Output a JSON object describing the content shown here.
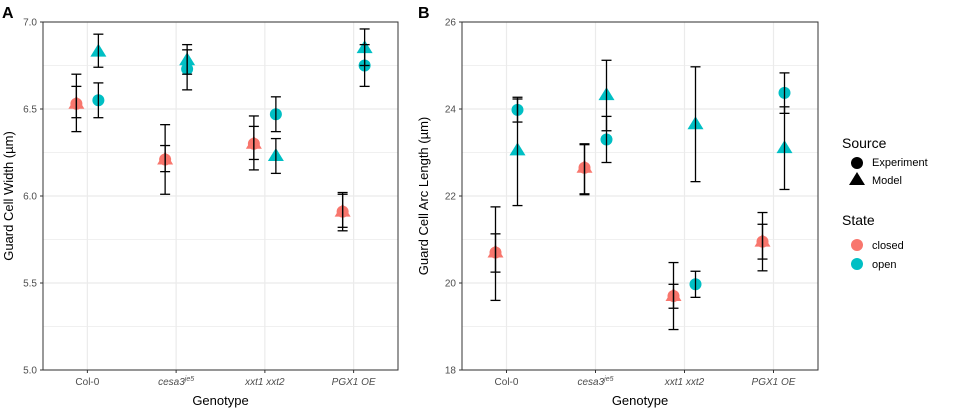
{
  "legend": {
    "source_title": "Source",
    "source_items": [
      {
        "label": "Experiment",
        "shape": "circle"
      },
      {
        "label": "Model",
        "shape": "triangle"
      }
    ],
    "state_title": "State",
    "state_items": [
      {
        "label": "closed",
        "color": "#F8766D"
      },
      {
        "label": "open",
        "color": "#00BFC4"
      }
    ]
  },
  "colors": {
    "closed": "#F8766D",
    "open": "#00BFC4",
    "grid": "#EBEBEB",
    "border": "#333333",
    "errorbar": "#000000"
  },
  "chart_data": [
    {
      "panel_label": "A",
      "type": "scatter",
      "title": "",
      "xlabel": "Genotype",
      "ylabel": "Guard Cell Width (µm)",
      "categories": [
        {
          "base": "Col-0",
          "sup": ""
        },
        {
          "base": "cesa3",
          "sup": "je5"
        },
        {
          "base": "xxt1 xxt2",
          "sup": ""
        },
        {
          "base": "PGX1 OE",
          "sup": ""
        }
      ],
      "ylim": [
        5.0,
        7.0
      ],
      "yticks": [
        5.0,
        5.5,
        6.0,
        6.5,
        7.0
      ],
      "ytick_labels": [
        "5.0",
        "5.5",
        "6.0",
        "6.5",
        "7.0"
      ],
      "series": [
        {
          "name": "closed – Experiment",
          "state": "closed",
          "source": "Experiment",
          "shape": "circle",
          "points": [
            {
              "cat": 0,
              "y": 6.53,
              "lo": 6.45,
              "hi": 6.63
            },
            {
              "cat": 1,
              "y": 6.21,
              "lo": 6.14,
              "hi": 6.29
            },
            {
              "cat": 2,
              "y": 6.3,
              "lo": 6.21,
              "hi": 6.4
            },
            {
              "cat": 3,
              "y": 5.91,
              "lo": 5.82,
              "hi": 6.01
            }
          ]
        },
        {
          "name": "closed – Model",
          "state": "closed",
          "source": "Model",
          "shape": "triangle",
          "points": [
            {
              "cat": 0,
              "y": 6.53,
              "lo": 6.37,
              "hi": 6.7
            },
            {
              "cat": 1,
              "y": 6.21,
              "lo": 6.01,
              "hi": 6.41
            },
            {
              "cat": 2,
              "y": 6.3,
              "lo": 6.15,
              "hi": 6.46
            },
            {
              "cat": 3,
              "y": 5.91,
              "lo": 5.8,
              "hi": 6.02
            }
          ]
        },
        {
          "name": "open – Experiment",
          "state": "open",
          "source": "Experiment",
          "shape": "circle",
          "points": [
            {
              "cat": 0,
              "y": 6.55,
              "lo": 6.45,
              "hi": 6.65
            },
            {
              "cat": 1,
              "y": 6.73,
              "lo": 6.7,
              "hi": 6.84
            },
            {
              "cat": 2,
              "y": 6.47,
              "lo": 6.37,
              "hi": 6.57
            },
            {
              "cat": 3,
              "y": 6.75,
              "lo": 6.63,
              "hi": 6.87
            }
          ]
        },
        {
          "name": "open – Model",
          "state": "open",
          "source": "Model",
          "shape": "triangle",
          "points": [
            {
              "cat": 0,
              "y": 6.83,
              "lo": 6.74,
              "hi": 6.93
            },
            {
              "cat": 1,
              "y": 6.78,
              "lo": 6.61,
              "hi": 6.87
            },
            {
              "cat": 2,
              "y": 6.23,
              "lo": 6.13,
              "hi": 6.33
            },
            {
              "cat": 3,
              "y": 6.85,
              "lo": 6.75,
              "hi": 6.96
            }
          ]
        }
      ]
    },
    {
      "panel_label": "B",
      "type": "scatter",
      "title": "",
      "xlabel": "Genotype",
      "ylabel": "Guard Cell Arc Length (µm)",
      "categories": [
        {
          "base": "Col-0",
          "sup": ""
        },
        {
          "base": "cesa3",
          "sup": "je5"
        },
        {
          "base": "xxt1 xxt2",
          "sup": ""
        },
        {
          "base": "PGX1 OE",
          "sup": ""
        }
      ],
      "ylim": [
        18,
        26
      ],
      "yticks": [
        18,
        20,
        22,
        24,
        26
      ],
      "ytick_labels": [
        "18",
        "20",
        "22",
        "24",
        "26"
      ],
      "series": [
        {
          "name": "closed – Experiment",
          "state": "closed",
          "source": "Experiment",
          "shape": "circle",
          "points": [
            {
              "cat": 0,
              "y": 20.7,
              "lo": 20.25,
              "hi": 21.13
            },
            {
              "cat": 1,
              "y": 22.65,
              "lo": 22.05,
              "hi": 23.2
            },
            {
              "cat": 2,
              "y": 19.7,
              "lo": 19.42,
              "hi": 19.97
            },
            {
              "cat": 3,
              "y": 20.95,
              "lo": 20.55,
              "hi": 21.35
            }
          ]
        },
        {
          "name": "closed – Model",
          "state": "closed",
          "source": "Model",
          "shape": "triangle",
          "points": [
            {
              "cat": 0,
              "y": 20.7,
              "lo": 19.6,
              "hi": 21.75
            },
            {
              "cat": 1,
              "y": 22.65,
              "lo": 22.03,
              "hi": 23.18
            },
            {
              "cat": 2,
              "y": 19.7,
              "lo": 18.93,
              "hi": 20.47
            },
            {
              "cat": 3,
              "y": 20.95,
              "lo": 20.28,
              "hi": 21.62
            }
          ]
        },
        {
          "name": "open – Experiment",
          "state": "open",
          "source": "Experiment",
          "shape": "circle",
          "points": [
            {
              "cat": 0,
              "y": 23.98,
              "lo": 23.7,
              "hi": 24.27
            },
            {
              "cat": 1,
              "y": 23.3,
              "lo": 22.77,
              "hi": 23.83
            },
            {
              "cat": 2,
              "y": 19.97,
              "lo": 19.67,
              "hi": 20.27
            },
            {
              "cat": 3,
              "y": 24.37,
              "lo": 23.9,
              "hi": 24.83
            }
          ]
        },
        {
          "name": "open – Model",
          "state": "open",
          "source": "Model",
          "shape": "triangle",
          "points": [
            {
              "cat": 0,
              "y": 23.05,
              "lo": 21.78,
              "hi": 24.23
            },
            {
              "cat": 1,
              "y": 24.32,
              "lo": 23.5,
              "hi": 25.12
            },
            {
              "cat": 2,
              "y": 23.65,
              "lo": 22.33,
              "hi": 24.97
            },
            {
              "cat": 3,
              "y": 23.1,
              "lo": 22.15,
              "hi": 24.05
            }
          ]
        }
      ]
    }
  ]
}
